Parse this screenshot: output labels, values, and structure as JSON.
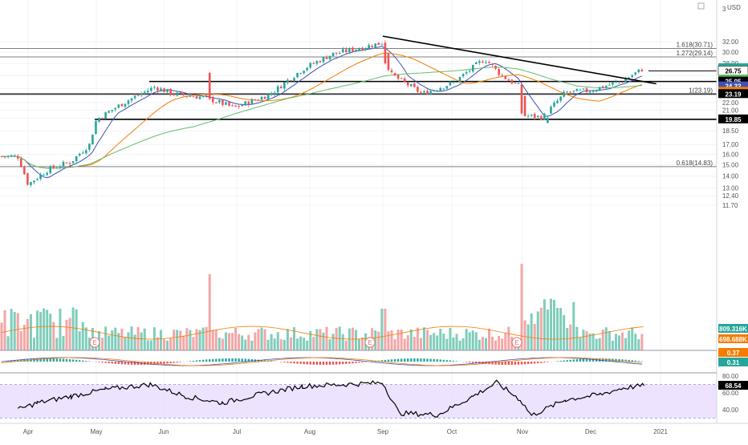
{
  "currency": "USD",
  "colors": {
    "up": "#26a69a",
    "down": "#ef5350",
    "ma_short": "#3f51b5",
    "ma_mid": "#f57c00",
    "ma_long": "#66bb6a",
    "rsi_band": "#e9dcff",
    "rsi_line": "#000000",
    "volume_up": "#7fcdbb",
    "volume_down": "#f4a6a6"
  },
  "price_axis": {
    "ticks": [
      "32.00",
      "30.00",
      "28.00",
      "26.00",
      "24.00",
      "23.00",
      "22.00",
      "21.00",
      "20.00",
      "18.50",
      "17.00",
      "16.00",
      "15.00",
      "14.00",
      "13.00",
      "12.40",
      "11.70"
    ],
    "top_label": "3"
  },
  "time_axis": {
    "ticks": [
      "Apr",
      "May",
      "Jun",
      "Jul",
      "Aug",
      "Sep",
      "Oct",
      "Nov",
      "Dec",
      "2021"
    ]
  },
  "fib_levels": [
    {
      "label": "1.618(30.71)",
      "value": 30.71
    },
    {
      "label": "1.272(29.14)",
      "value": 29.14
    },
    {
      "label": "1(23.19)",
      "value": 23.19
    },
    {
      "label": "0.618(14.83)",
      "value": 14.83
    }
  ],
  "horizontal_levels": [
    26.75,
    25.05,
    23.19,
    19.85
  ],
  "price_badges": [
    {
      "text": "27.21",
      "bg": "#26a69a",
      "color": "#ffffff",
      "value": 27.21
    },
    {
      "text": "26.75",
      "bg": "#ffffff",
      "color": "#000000",
      "value": 26.75
    },
    {
      "text": "25.38",
      "bg": "#66bb6a",
      "color": "#ffffff",
      "value": 25.38
    },
    {
      "text": "25.05",
      "bg": "#000000",
      "color": "#ffffff",
      "value": 25.05
    },
    {
      "text": "24.32",
      "bg": "#3f51b5",
      "color": "#ffffff",
      "value": 24.32
    },
    {
      "text": "23.53",
      "bg": "#f57c00",
      "color": "#ffffff",
      "value": 23.53
    },
    {
      "text": "23.19",
      "bg": "#000000",
      "color": "#ffffff",
      "value": 23.19
    },
    {
      "text": "19.85",
      "bg": "#000000",
      "color": "#ffffff",
      "value": 19.85
    }
  ],
  "volume_badges": [
    {
      "text": "809.316K",
      "bg": "#26a69a",
      "color": "#ffffff"
    },
    {
      "text": "698.688K",
      "bg": "#f57c00",
      "color": "#ffffff"
    }
  ],
  "macd_badges": [
    {
      "text": "0.37",
      "bg": "#f57c00",
      "color": "#ffffff"
    },
    {
      "text": "0.31",
      "bg": "#26a69a",
      "color": "#ffffff"
    }
  ],
  "rsi_badge": {
    "text": "68.54",
    "bg": "#000000",
    "color": "#ffffff",
    "value": 68.54
  },
  "rsi_axis": {
    "ticks": [
      "80.00",
      "60.00",
      "40.00"
    ]
  },
  "earnings_markers": [
    "E",
    "E",
    "E"
  ],
  "chart_data": {
    "type": "candlestick",
    "x": [
      "Apr",
      "May",
      "Jun",
      "Jul",
      "Aug",
      "Sep",
      "Oct",
      "Nov",
      "Dec"
    ],
    "price_anchors": [
      {
        "x": "Mar-24",
        "y": 15.8
      },
      {
        "x": "Apr-01",
        "y": 13.3
      },
      {
        "x": "Apr-10",
        "y": 14.6
      },
      {
        "x": "Apr-20",
        "y": 15.3
      },
      {
        "x": "Apr-28",
        "y": 17.0
      },
      {
        "x": "May-01",
        "y": 19.8
      },
      {
        "x": "May-15",
        "y": 22.3
      },
      {
        "x": "May-27",
        "y": 24.2
      },
      {
        "x": "Jun-05",
        "y": 23.2
      },
      {
        "x": "Jun-18",
        "y": 22.7
      },
      {
        "x": "Jun-30",
        "y": 21.3
      },
      {
        "x": "Jul-15",
        "y": 23.2
      },
      {
        "x": "Jul-28",
        "y": 27.0
      },
      {
        "x": "Aug-10",
        "y": 29.6
      },
      {
        "x": "Aug-31",
        "y": 31.8
      },
      {
        "x": "Sep-04",
        "y": 26.3
      },
      {
        "x": "Sep-18",
        "y": 23.2
      },
      {
        "x": "Oct-02",
        "y": 24.9
      },
      {
        "x": "Oct-15",
        "y": 28.8
      },
      {
        "x": "Oct-22",
        "y": 26.0
      },
      {
        "x": "Oct-30",
        "y": 24.2
      },
      {
        "x": "Nov-02",
        "y": 20.3
      },
      {
        "x": "Nov-10",
        "y": 20.1
      },
      {
        "x": "Nov-20",
        "y": 23.4
      },
      {
        "x": "Dec-01",
        "y": 23.7
      },
      {
        "x": "Dec-15",
        "y": 25.2
      },
      {
        "x": "Dec-24",
        "y": 27.21
      }
    ],
    "trendline": {
      "start": {
        "x": "Sep-01",
        "y": 33.1
      },
      "end": {
        "x": "Dec-24",
        "y": 24.7
      }
    },
    "rsi_latest": 68.54,
    "rsi_band": [
      30,
      70
    ],
    "volume_latest": "809.316K",
    "volume_ma": "698.688K",
    "macd_latest": [
      0.37,
      0.31
    ],
    "ylim": [
      11.2,
      33.0
    ]
  }
}
